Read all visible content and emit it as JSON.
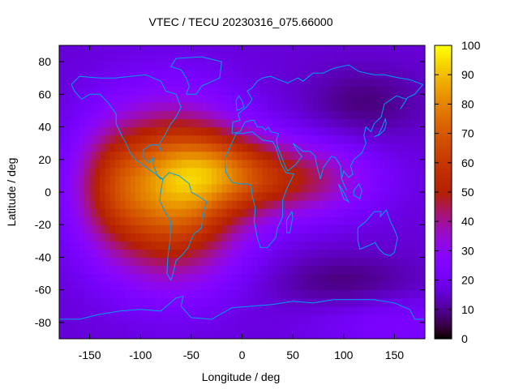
{
  "chart_data": {
    "type": "heatmap",
    "title": "VTEC / TECU 20230316_075.66000",
    "xlabel": "Longitude / deg",
    "ylabel": "Latitude / deg",
    "xlim": [
      -180,
      180
    ],
    "ylim": [
      -90,
      90
    ],
    "xticks": [
      -150,
      -100,
      -50,
      0,
      50,
      100,
      150
    ],
    "yticks": [
      80,
      60,
      40,
      20,
      0,
      -20,
      -40,
      -60,
      -80
    ],
    "colorbar": {
      "range": [
        0,
        100
      ],
      "ticks": [
        0,
        10,
        20,
        30,
        40,
        50,
        60,
        70,
        80,
        90,
        100
      ]
    },
    "colors": {
      "background_low": "#3c00a8",
      "crest_peak": "#ffe000",
      "coastline": "#00a0f0"
    },
    "vtec_field_model": {
      "base_tecu": 16,
      "blobs": [
        {
          "lon": -70,
          "lat": 0,
          "sigma_lon": 48,
          "sigma_lat": 34,
          "amp_tecu": 62
        },
        {
          "lon": -25,
          "lat": 15,
          "sigma_lon": 40,
          "sigma_lat": 16,
          "amp_tecu": 22
        },
        {
          "lon": 45,
          "lat": 8,
          "sigma_lon": 55,
          "sigma_lat": 16,
          "amp_tecu": 30
        },
        {
          "lon": -130,
          "lat": 5,
          "sigma_lon": 25,
          "sigma_lat": 25,
          "amp_tecu": 18
        },
        {
          "lon": 150,
          "lat": -80,
          "sigma_lon": 60,
          "sigma_lat": 12,
          "amp_tecu": 8
        }
      ],
      "troughs": [
        {
          "lon": 120,
          "lat": 55,
          "sigma_lon": 40,
          "sigma_lat": 15,
          "amp_tecu": -8
        },
        {
          "lon": 100,
          "lat": -55,
          "sigma_lon": 50,
          "sigma_lat": 12,
          "amp_tecu": -8
        }
      ]
    }
  }
}
